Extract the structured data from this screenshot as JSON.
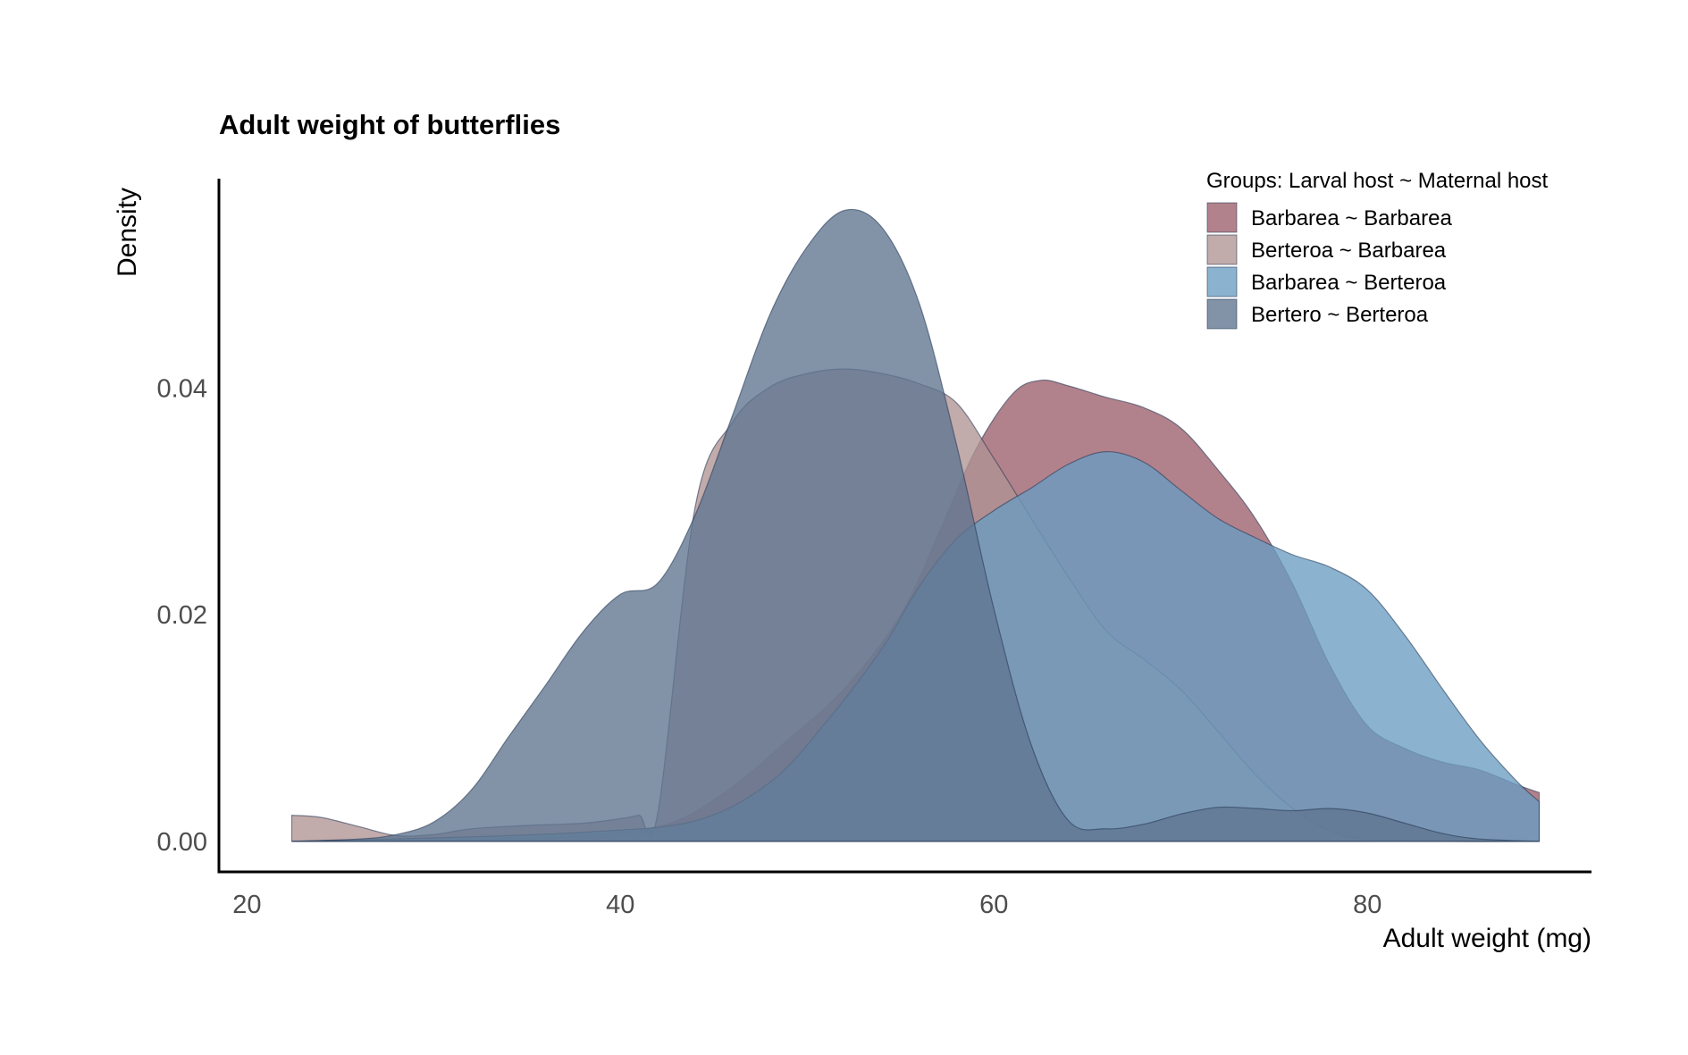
{
  "chart_data": {
    "type": "area",
    "subtype": "density",
    "title": "Adult weight of butterflies",
    "xlabel": "Adult weight (mg)",
    "ylabel": "Density",
    "xlim": [
      18.5,
      92
    ],
    "ylim": [
      -0.0027,
      0.0585
    ],
    "x_ticks": [
      20,
      40,
      60,
      80
    ],
    "x_tick_labels": [
      "20",
      "40",
      "60",
      "80"
    ],
    "y_ticks": [
      0,
      0.02,
      0.04
    ],
    "y_tick_labels": [
      "0.00",
      "0.02",
      "0.04"
    ],
    "grid": false,
    "legend_title": "Groups: Larval host ~ Maternal host",
    "legend_position": "top-right",
    "series": [
      {
        "name": "Barbarea ~ Barbarea",
        "color": "#9c5f6b",
        "points": [
          [
            22.4,
            0
          ],
          [
            30,
            0.0001
          ],
          [
            36,
            0.0003
          ],
          [
            40,
            0.0008
          ],
          [
            43,
            0.0018
          ],
          [
            46,
            0.0048
          ],
          [
            49,
            0.009
          ],
          [
            52,
            0.0135
          ],
          [
            55,
            0.02
          ],
          [
            57,
            0.027
          ],
          [
            59,
            0.0345
          ],
          [
            61,
            0.0395
          ],
          [
            62.5,
            0.0407
          ],
          [
            64,
            0.0402
          ],
          [
            66,
            0.0392
          ],
          [
            68,
            0.0383
          ],
          [
            70,
            0.0365
          ],
          [
            72,
            0.0328
          ],
          [
            74,
            0.0285
          ],
          [
            76,
            0.0227
          ],
          [
            78,
            0.0155
          ],
          [
            80,
            0.0102
          ],
          [
            82,
            0.0082
          ],
          [
            84,
            0.007
          ],
          [
            86,
            0.0063
          ],
          [
            88,
            0.005
          ],
          [
            89.2,
            0.0043
          ]
        ]
      },
      {
        "name": "Berteroa ~ Barbarea",
        "color": "#b09393",
        "points": [
          [
            22.4,
            0.0023
          ],
          [
            24,
            0.0021
          ],
          [
            26,
            0.0013
          ],
          [
            28,
            0.0005
          ],
          [
            30,
            0.0006
          ],
          [
            32,
            0.0011
          ],
          [
            35,
            0.0014
          ],
          [
            38,
            0.0016
          ],
          [
            40,
            0.002
          ],
          [
            41,
            0.0023
          ],
          [
            42,
            0.0025
          ],
          [
            44,
            0.0295
          ],
          [
            46,
            0.037
          ],
          [
            48,
            0.0401
          ],
          [
            50,
            0.0413
          ],
          [
            52,
            0.0417
          ],
          [
            54,
            0.0413
          ],
          [
            56,
            0.0404
          ],
          [
            58,
            0.0387
          ],
          [
            60,
            0.0338
          ],
          [
            62,
            0.0285
          ],
          [
            64,
            0.0233
          ],
          [
            66,
            0.0186
          ],
          [
            68,
            0.0161
          ],
          [
            70,
            0.0134
          ],
          [
            72,
            0.0097
          ],
          [
            74,
            0.0059
          ],
          [
            76,
            0.0029
          ],
          [
            78,
            0.0009
          ],
          [
            80,
            0.0002
          ],
          [
            84,
            0
          ],
          [
            89.2,
            0
          ]
        ]
      },
      {
        "name": "Barbarea ~ Berteroa",
        "color": "#6a9cc2",
        "points": [
          [
            22.4,
            0
          ],
          [
            30,
            0.0003
          ],
          [
            38,
            0.0008
          ],
          [
            44,
            0.0018
          ],
          [
            48,
            0.0052
          ],
          [
            51,
            0.0105
          ],
          [
            54,
            0.017
          ],
          [
            56,
            0.0225
          ],
          [
            58,
            0.0267
          ],
          [
            60,
            0.0292
          ],
          [
            62,
            0.0312
          ],
          [
            64,
            0.0333
          ],
          [
            66,
            0.0344
          ],
          [
            68,
            0.0335
          ],
          [
            70,
            0.031
          ],
          [
            72,
            0.0285
          ],
          [
            74,
            0.0268
          ],
          [
            76,
            0.0253
          ],
          [
            78,
            0.0242
          ],
          [
            80,
            0.0222
          ],
          [
            82,
            0.0182
          ],
          [
            84,
            0.0135
          ],
          [
            86,
            0.009
          ],
          [
            88,
            0.0053
          ],
          [
            89.2,
            0.0035
          ]
        ]
      },
      {
        "name": "Bertero ~ Berteroa",
        "color": "#5f7590",
        "points": [
          [
            22.4,
            0
          ],
          [
            26,
            0.0002
          ],
          [
            28,
            0.0006
          ],
          [
            30,
            0.0017
          ],
          [
            32,
            0.0045
          ],
          [
            34,
            0.0092
          ],
          [
            36,
            0.0138
          ],
          [
            38,
            0.0185
          ],
          [
            40,
            0.0218
          ],
          [
            42,
            0.0228
          ],
          [
            44,
            0.0288
          ],
          [
            46,
            0.0376
          ],
          [
            48,
            0.0465
          ],
          [
            50,
            0.0525
          ],
          [
            52,
            0.0557
          ],
          [
            54,
            0.0542
          ],
          [
            56,
            0.0475
          ],
          [
            58,
            0.035
          ],
          [
            60,
            0.0205
          ],
          [
            62,
            0.0085
          ],
          [
            64,
            0.0018
          ],
          [
            66,
            0.0011
          ],
          [
            68,
            0.0015
          ],
          [
            70,
            0.0024
          ],
          [
            72,
            0.003
          ],
          [
            74,
            0.0029
          ],
          [
            76,
            0.0027
          ],
          [
            78,
            0.0029
          ],
          [
            80,
            0.0025
          ],
          [
            82,
            0.0016
          ],
          [
            84,
            0.0007
          ],
          [
            86,
            0.0002
          ],
          [
            89.2,
            0
          ]
        ]
      }
    ]
  }
}
